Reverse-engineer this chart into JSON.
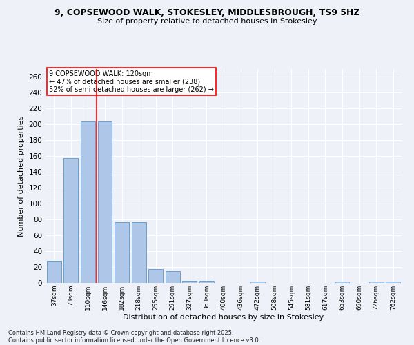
{
  "title": "9, COPSEWOOD WALK, STOKESLEY, MIDDLESBROUGH, TS9 5HZ",
  "subtitle": "Size of property relative to detached houses in Stokesley",
  "xlabel": "Distribution of detached houses by size in Stokesley",
  "ylabel": "Number of detached properties",
  "categories": [
    "37sqm",
    "73sqm",
    "110sqm",
    "146sqm",
    "182sqm",
    "218sqm",
    "255sqm",
    "291sqm",
    "327sqm",
    "363sqm",
    "400sqm",
    "436sqm",
    "472sqm",
    "508sqm",
    "545sqm",
    "581sqm",
    "617sqm",
    "653sqm",
    "690sqm",
    "726sqm",
    "762sqm"
  ],
  "values": [
    28,
    158,
    204,
    204,
    77,
    77,
    17,
    15,
    3,
    3,
    0,
    0,
    2,
    0,
    0,
    0,
    0,
    2,
    0,
    2,
    2
  ],
  "bar_color": "#aec6e8",
  "bar_edge_color": "#5a96c8",
  "vline_x": 2.5,
  "vline_color": "red",
  "annotation_text": "9 COPSEWOOD WALK: 120sqm\n← 47% of detached houses are smaller (238)\n52% of semi-detached houses are larger (262) →",
  "annotation_box_color": "white",
  "annotation_box_edge_color": "red",
  "footer_line1": "Contains HM Land Registry data © Crown copyright and database right 2025.",
  "footer_line2": "Contains public sector information licensed under the Open Government Licence v3.0.",
  "background_color": "#eef2f8",
  "grid_color": "white",
  "ylim": [
    0,
    270
  ],
  "yticks": [
    0,
    20,
    40,
    60,
    80,
    100,
    120,
    140,
    160,
    180,
    200,
    220,
    240,
    260
  ]
}
